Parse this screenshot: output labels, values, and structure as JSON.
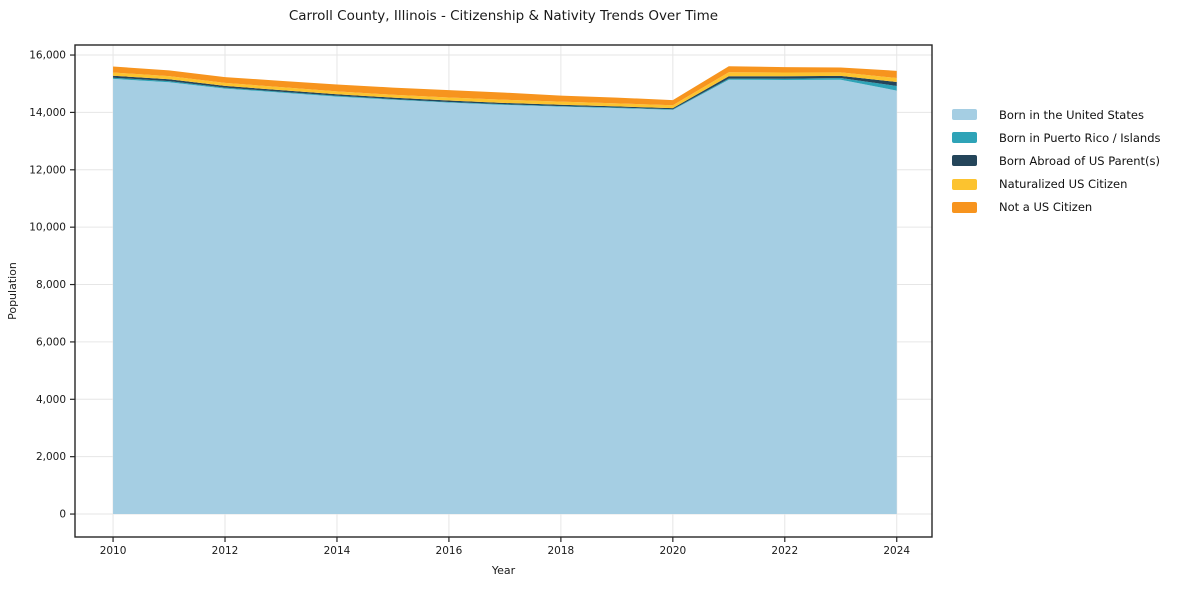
{
  "chart_data": {
    "type": "area",
    "stacked": true,
    "title": "Carroll County, Illinois - Citizenship & Nativity Trends Over Time",
    "xlabel": "Year",
    "ylabel": "Population",
    "x": [
      2010,
      2011,
      2012,
      2013,
      2014,
      2015,
      2016,
      2017,
      2018,
      2019,
      2020,
      2021,
      2022,
      2023,
      2024
    ],
    "series": [
      {
        "name": "Born in the United States",
        "color": "#a5cee3",
        "values": [
          15170,
          15050,
          14830,
          14690,
          14550,
          14440,
          14340,
          14260,
          14200,
          14150,
          14090,
          15140,
          15130,
          15140,
          14760
        ]
      },
      {
        "name": "Born in Puerto Rico / Islands",
        "color": "#2ea3b7",
        "values": [
          40,
          40,
          35,
          30,
          30,
          25,
          25,
          25,
          20,
          20,
          20,
          40,
          45,
          60,
          160
        ]
      },
      {
        "name": "Born Abroad of US Parent(s)",
        "color": "#24455a",
        "values": [
          70,
          65,
          60,
          55,
          55,
          50,
          50,
          45,
          45,
          40,
          40,
          80,
          85,
          75,
          140
        ]
      },
      {
        "name": "Naturalized US Citizen",
        "color": "#fcc32f",
        "values": [
          110,
          110,
          105,
          105,
          100,
          100,
          105,
          110,
          110,
          105,
          100,
          140,
          130,
          120,
          140
        ]
      },
      {
        "name": "Not a US Citizen",
        "color": "#f7941e",
        "values": [
          210,
          200,
          200,
          220,
          240,
          250,
          255,
          250,
          210,
          200,
          180,
          210,
          190,
          170,
          250
        ]
      }
    ],
    "xticks": [
      2010,
      2012,
      2014,
      2016,
      2018,
      2020,
      2022,
      2024
    ],
    "yticks": [
      0,
      2000,
      4000,
      6000,
      8000,
      10000,
      12000,
      14000,
      16000
    ],
    "xlim": [
      2009.32,
      2024.63
    ],
    "ylim": [
      -800,
      16350
    ],
    "grid": true,
    "legend_position": "right of plot, top"
  },
  "style": {
    "background": "#ffffff",
    "grid_color": "#e6e6e6",
    "spine_color": "#262626",
    "tick_text_color": "#1a1a1a"
  }
}
